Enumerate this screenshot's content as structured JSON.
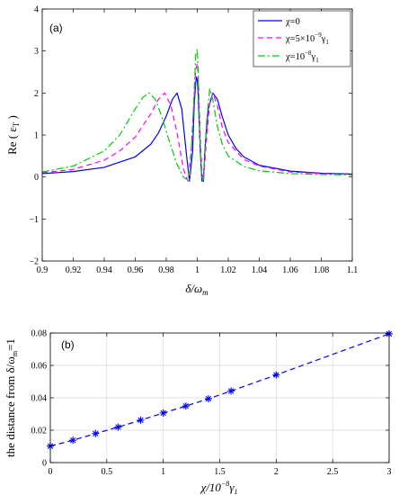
{
  "chart_data": [
    {
      "type": "line",
      "panel_label": "(a)",
      "xlabel": "δ/ω",
      "xlabel_sub": "m",
      "ylabel": "Re ( ε",
      "ylabel_sub": "T",
      "ylabel_end": " )",
      "xlim": [
        0.9,
        1.1
      ],
      "ylim": [
        -2,
        4
      ],
      "xticks": [
        0.9,
        0.92,
        0.94,
        0.96,
        0.98,
        1,
        1.02,
        1.04,
        1.06,
        1.08,
        1.1
      ],
      "xtick_labels": [
        "0.9",
        "0.92",
        "0.94",
        "0.96",
        "0.98",
        "1",
        "1.02",
        "1.04",
        "1.06",
        "1.08",
        "1.1"
      ],
      "yticks": [
        -2,
        -1,
        0,
        1,
        2,
        3,
        4
      ],
      "ytick_labels": [
        "−2",
        "−1",
        "0",
        "1",
        "2",
        "3",
        "4"
      ],
      "grid": false,
      "legend_position": "top-right",
      "series": [
        {
          "name": "χ=0",
          "color": "#0000ff",
          "dash": "solid",
          "x": [
            0.9,
            0.92,
            0.94,
            0.96,
            0.97,
            0.975,
            0.98,
            0.984,
            0.987,
            0.99,
            0.993,
            0.995,
            0.997,
            0.998,
            0.999,
            0.9995,
            1.0,
            1.0005,
            1.001,
            1.002,
            1.003,
            1.004,
            1.005,
            1.007,
            1.01,
            1.013,
            1.016,
            1.02,
            1.025,
            1.03,
            1.04,
            1.06,
            1.08,
            1.1
          ],
          "y": [
            0.08,
            0.13,
            0.23,
            0.48,
            0.78,
            1.05,
            1.45,
            1.85,
            2.0,
            1.62,
            0.55,
            -0.1,
            0.6,
            1.7,
            2.25,
            2.38,
            2.3,
            2.05,
            1.55,
            0.6,
            -0.1,
            -0.1,
            0.7,
            1.6,
            2.0,
            1.85,
            1.45,
            1.0,
            0.68,
            0.48,
            0.28,
            0.14,
            0.09,
            0.07
          ]
        },
        {
          "name": "χ=5×10",
          "name_sup": "−9",
          "name_tail": "γ",
          "name_sub": "1",
          "color": "#ff00ff",
          "dash": "dashed",
          "x": [
            0.9,
            0.92,
            0.94,
            0.95,
            0.96,
            0.97,
            0.975,
            0.979,
            0.983,
            0.987,
            0.991,
            0.994,
            0.996,
            0.998,
            0.999,
            1.0,
            1.0005,
            1.001,
            1.002,
            1.003,
            1.004,
            1.006,
            1.008,
            1.01,
            1.013,
            1.016,
            1.02,
            1.03,
            1.04,
            1.06,
            1.08,
            1.1
          ],
          "y": [
            0.1,
            0.18,
            0.4,
            0.62,
            0.95,
            1.5,
            1.85,
            2.0,
            1.7,
            1.05,
            0.2,
            -0.1,
            0.6,
            1.9,
            2.55,
            2.7,
            2.5,
            2.0,
            0.9,
            0.1,
            -0.1,
            0.9,
            1.75,
            2.0,
            1.7,
            1.2,
            0.82,
            0.42,
            0.26,
            0.12,
            0.08,
            0.06
          ]
        },
        {
          "name": "χ=10",
          "name_sup": "−8",
          "name_tail": "γ",
          "name_sub": "1",
          "color": "#00cc00",
          "dash": "dashdot",
          "x": [
            0.9,
            0.92,
            0.94,
            0.95,
            0.96,
            0.965,
            0.969,
            0.973,
            0.977,
            0.982,
            0.987,
            0.991,
            0.995,
            0.997,
            0.999,
            1.0,
            1.0005,
            1.001,
            1.002,
            1.003,
            1.004,
            1.006,
            1.008,
            1.01,
            1.013,
            1.016,
            1.02,
            1.03,
            1.04,
            1.06,
            1.08,
            1.1
          ],
          "y": [
            0.12,
            0.26,
            0.62,
            1.0,
            1.62,
            1.9,
            2.0,
            1.85,
            1.45,
            0.85,
            0.3,
            0.0,
            -0.1,
            1.2,
            2.9,
            3.05,
            2.6,
            1.8,
            0.55,
            -0.1,
            -0.05,
            1.3,
            2.1,
            1.85,
            1.2,
            0.8,
            0.5,
            0.25,
            0.15,
            0.08,
            0.06,
            0.05
          ]
        }
      ]
    },
    {
      "type": "line",
      "panel_label": "(b)",
      "xlabel": "χ/10",
      "xlabel_sup": "−8",
      "xlabel_tail": "γ",
      "xlabel_sub": "1",
      "ylabel": "the distance from δ/ω",
      "ylabel_sub": "m",
      "ylabel_end": "=1",
      "xlim": [
        0,
        3
      ],
      "ylim": [
        0,
        0.08
      ],
      "xticks": [
        0,
        0.5,
        1,
        1.5,
        2,
        2.5,
        3
      ],
      "xtick_labels": [
        "0",
        "0.5",
        "1",
        "1.5",
        "2",
        "2.5",
        "3"
      ],
      "yticks": [
        0,
        0.02,
        0.04,
        0.06,
        0.08
      ],
      "ytick_labels": [
        "0",
        "0.02",
        "0.04",
        "0.06",
        "0.08"
      ],
      "grid": true,
      "series": [
        {
          "color": "#0000ff",
          "dash": "dashed",
          "marker": "asterisk",
          "x": [
            0,
            0.2,
            0.4,
            0.6,
            0.8,
            1.0,
            1.2,
            1.4,
            1.6,
            2.0,
            3.0
          ],
          "y": [
            0.0102,
            0.0138,
            0.0179,
            0.0219,
            0.0262,
            0.0306,
            0.0349,
            0.0394,
            0.0442,
            0.0541,
            0.0795
          ]
        }
      ]
    }
  ]
}
